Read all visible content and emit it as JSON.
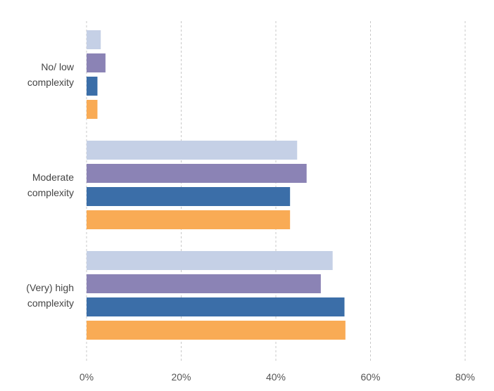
{
  "chart_data": {
    "type": "bar",
    "orientation": "horizontal",
    "categories": [
      [
        "No/ low",
        "complexity"
      ],
      [
        "Moderate",
        "complexity"
      ],
      [
        "(Very) high",
        "complexity"
      ]
    ],
    "series": [
      {
        "color": "#c5d0e6",
        "values": [
          3,
          44.5,
          52
        ]
      },
      {
        "color": "#8b83b5",
        "values": [
          4,
          46.5,
          49.5
        ]
      },
      {
        "color": "#3b6ea8",
        "values": [
          2.3,
          43,
          54.5
        ]
      },
      {
        "color": "#f9ab55",
        "values": [
          2.3,
          43,
          54.7
        ]
      }
    ],
    "xlim": [
      0,
      80
    ],
    "xticks": [
      "0%",
      "20%",
      "40%",
      "60%",
      "80%"
    ],
    "grid": true,
    "legend": false
  }
}
